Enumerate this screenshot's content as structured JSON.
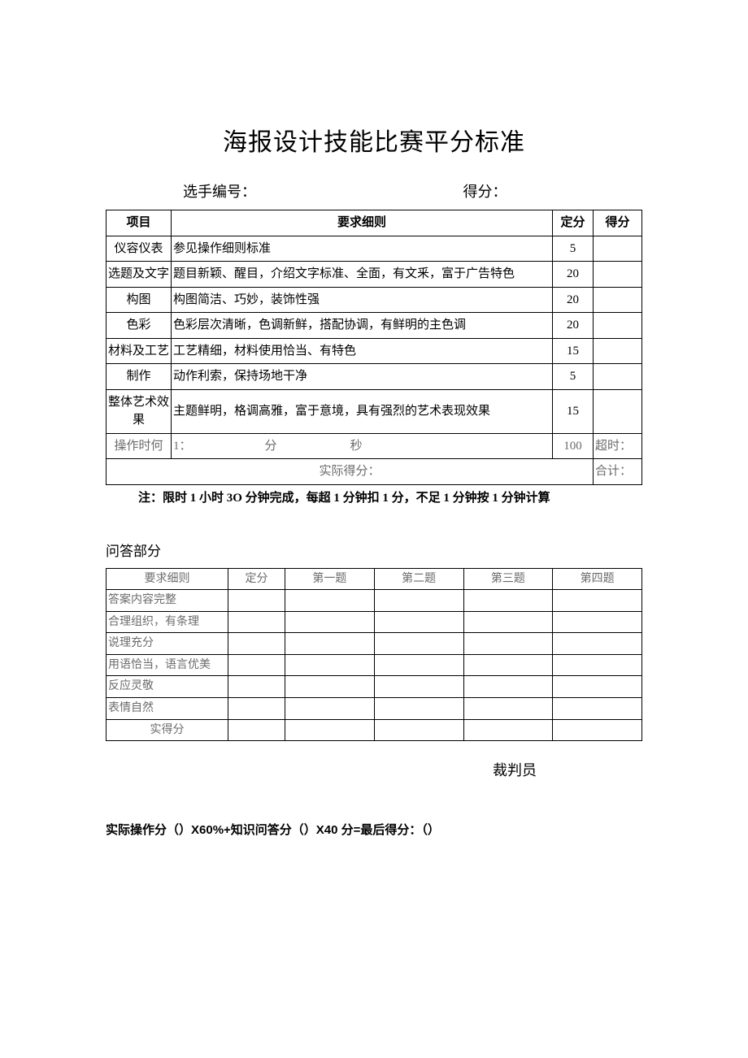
{
  "title": "海报设计技能比赛平分标准",
  "info": {
    "contestant_label": "选手编号：",
    "score_label": "得分："
  },
  "table1": {
    "headers": {
      "item": "项目",
      "req": "要求细则",
      "fixed": "定分",
      "score": "得分"
    },
    "rows": [
      {
        "item": "仪容仪表",
        "req": "参见操作细则标准",
        "fixed": "5",
        "score": ""
      },
      {
        "item": "选题及文字",
        "req": "题目新颖、醒目，介绍文字标准、全面，有文釆，富于广告特色",
        "fixed": "20",
        "score": ""
      },
      {
        "item": "构图",
        "req": "构图简洁、巧妙，装饰性强",
        "fixed": "20",
        "score": ""
      },
      {
        "item": "色彩",
        "req": "色彩层次清晰，色调新鲜，搭配协调，有鲜明的主色调",
        "fixed": "20",
        "score": ""
      },
      {
        "item": "材料及工艺",
        "req": "工艺精细，材料使用恰当、有特色",
        "fixed": "15",
        "score": ""
      },
      {
        "item": "制作",
        "req": "动作利索，保持场地干净",
        "fixed": "5",
        "score": ""
      },
      {
        "item": "整体艺术效果",
        "req": "主题鲜明，格调高雅，富于意境，具有强烈的艺术表现效果",
        "fixed": "15",
        "score": ""
      }
    ],
    "time_row": {
      "item": "操作时何",
      "prefix": "1：",
      "min_label": "分",
      "sec_label": "秒",
      "fixed": "100",
      "score_label": "超时："
    },
    "footer": {
      "left": "实际得分：",
      "right": "合计："
    }
  },
  "note": "注：限时 1 小时 3O 分钟完成，每超 1 分钟扣 1 分，不足 1 分钟按 1 分钟计算",
  "qa_heading": "问答部分",
  "table2": {
    "headers": {
      "req": "要求细则",
      "fixed": "定分",
      "q1": "第一题",
      "q2": "第二题",
      "q3": "第三题",
      "q4": "第四题"
    },
    "rows": [
      "答案内容完整",
      "合理组织，有条理",
      "说理充分",
      "用语恰当，语言优美",
      "反应灵敬",
      "表情自然"
    ],
    "footer": "实得分"
  },
  "judge_label": "裁判员",
  "formula": "实际操作分（）X60%+知识问答分（）X40 分=最后得分：（）"
}
